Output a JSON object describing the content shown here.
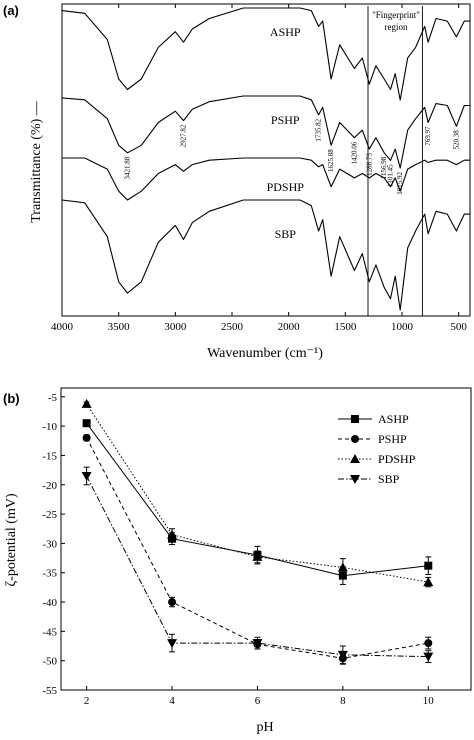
{
  "panel_a": {
    "label": "(a)",
    "ylabel": "Transmittance (%) —",
    "xlabel": "Wavenumber (cm⁻¹)",
    "region_label_1": "\"Fingerprint\"",
    "region_label_2": "region",
    "xticks": [
      "4000",
      "3500",
      "3000",
      "2500",
      "2000",
      "1500",
      "1000",
      "500"
    ],
    "spectra": [
      "ASHP",
      "PSHP",
      "PDSHP",
      "SBP"
    ],
    "peaks": [
      "3421.88",
      "2927.82",
      "1735.82",
      "1625.88",
      "1420.06",
      "1288.73",
      "1156.98",
      "1101.45",
      "1015.92",
      "769.97",
      "520.38"
    ]
  },
  "panel_b": {
    "label": "(b)"
  },
  "chart_data": [
    {
      "type": "line",
      "title": "",
      "xlabel": "Wavenumber (cm⁻¹)",
      "ylabel": "Transmittance (%)",
      "xlim": [
        4000,
        400
      ],
      "x_reversed": true,
      "y_ticks_shown": false,
      "series": [
        {
          "name": "ASHP",
          "x": [
            4000,
            3800,
            3600,
            3500,
            3421.88,
            3300,
            3150,
            3000,
            2927.82,
            2850,
            2700,
            2400,
            2100,
            1900,
            1800,
            1735.82,
            1700,
            1625.88,
            1550,
            1420.06,
            1350,
            1288.73,
            1230,
            1156.98,
            1101.45,
            1060,
            1015.92,
            950,
            880,
            800,
            769.97,
            700,
            600,
            520.38,
            450,
            400
          ],
          "y": [
            96,
            95,
            85,
            70,
            66,
            70,
            82,
            88,
            84,
            89,
            93,
            97,
            97,
            97,
            96,
            90,
            92,
            70,
            83,
            74,
            78,
            68,
            75,
            70,
            66,
            72,
            62,
            78,
            82,
            90,
            84,
            93,
            92,
            86,
            92,
            92
          ]
        },
        {
          "name": "PSHP",
          "x": [
            4000,
            3800,
            3600,
            3500,
            3421.88,
            3300,
            3150,
            3000,
            2927.82,
            2850,
            2700,
            2400,
            2100,
            1900,
            1800,
            1735.82,
            1700,
            1625.88,
            1550,
            1420.06,
            1350,
            1288.73,
            1230,
            1156.98,
            1101.45,
            1060,
            1015.92,
            950,
            880,
            800,
            769.97,
            700,
            600,
            520.38,
            450,
            400
          ],
          "y": [
            97,
            96,
            86,
            72,
            68,
            72,
            84,
            90,
            85,
            91,
            95,
            98,
            98,
            98,
            96,
            88,
            92,
            72,
            84,
            76,
            80,
            70,
            76,
            68,
            64,
            70,
            60,
            80,
            86,
            92,
            84,
            94,
            93,
            82,
            93,
            93
          ]
        },
        {
          "name": "PDSHP",
          "x": [
            4000,
            3800,
            3600,
            3500,
            3421.88,
            3300,
            3150,
            3000,
            2927.82,
            2850,
            2700,
            2400,
            2100,
            1900,
            1800,
            1735.82,
            1700,
            1625.88,
            1550,
            1420.06,
            1350,
            1288.73,
            1230,
            1156.98,
            1101.45,
            1060,
            1015.92,
            950,
            880,
            800,
            769.97,
            700,
            600,
            520.38,
            450,
            400
          ],
          "y": [
            95,
            95,
            90,
            80,
            76,
            80,
            88,
            92,
            89,
            92,
            94,
            95,
            95,
            95,
            94,
            91,
            92,
            82,
            90,
            86,
            88,
            86,
            88,
            86,
            82,
            86,
            80,
            90,
            92,
            94,
            93,
            94,
            94,
            92,
            94,
            94
          ]
        },
        {
          "name": "SBP",
          "x": [
            4000,
            3800,
            3600,
            3500,
            3421.88,
            3300,
            3150,
            3000,
            2927.82,
            2850,
            2700,
            2400,
            2100,
            1900,
            1800,
            1735.82,
            1700,
            1625.88,
            1550,
            1420.06,
            1350,
            1288.73,
            1230,
            1156.98,
            1101.45,
            1060,
            1015.92,
            950,
            880,
            800,
            769.97,
            700,
            600,
            520.38,
            450,
            400
          ],
          "y": [
            97,
            96,
            84,
            68,
            64,
            68,
            82,
            88,
            83,
            89,
            93,
            97,
            97,
            97,
            95,
            86,
            90,
            70,
            84,
            72,
            78,
            68,
            74,
            66,
            62,
            70,
            58,
            80,
            86,
            92,
            85,
            93,
            92,
            86,
            92,
            92
          ]
        }
      ],
      "reference_lines_x": [
        1300,
        820
      ]
    },
    {
      "type": "line",
      "title": "",
      "xlabel": "pH",
      "ylabel": "ζ-potential (mV)",
      "xlim": [
        1.4,
        11
      ],
      "ylim": [
        -55,
        -3.5
      ],
      "xticks": [
        2,
        4,
        6,
        8,
        10
      ],
      "yticks": [
        -5,
        -10,
        -15,
        -20,
        -25,
        -30,
        -35,
        -40,
        -45,
        -50,
        -55
      ],
      "legend": "top-right",
      "x": [
        2,
        4,
        6,
        8,
        10
      ],
      "series": [
        {
          "name": "ASHP",
          "marker": "square",
          "line": "solid",
          "values": [
            -9.5,
            -29.2,
            -32,
            -35.5,
            -33.8
          ],
          "errors": [
            0.5,
            1,
            1.5,
            1.5,
            1.5
          ]
        },
        {
          "name": "PSHP",
          "marker": "circle",
          "line": "dashed",
          "values": [
            -12,
            -40,
            -47.2,
            -49.6,
            -47
          ],
          "errors": [
            0.5,
            0.8,
            0.8,
            1,
            1
          ]
        },
        {
          "name": "PDSHP",
          "marker": "triangle-up",
          "line": "dotted",
          "values": [
            -6.2,
            -28.5,
            -32.3,
            -34.1,
            -36.6
          ],
          "errors": [
            0.3,
            1,
            1,
            1.5,
            0.8
          ]
        },
        {
          "name": "SBP",
          "marker": "triangle-down",
          "line": "dash-dot",
          "values": [
            -18.5,
            -47,
            -47,
            -49,
            -49.3
          ],
          "errors": [
            1.5,
            1.5,
            1,
            1.5,
            1
          ]
        }
      ]
    }
  ]
}
